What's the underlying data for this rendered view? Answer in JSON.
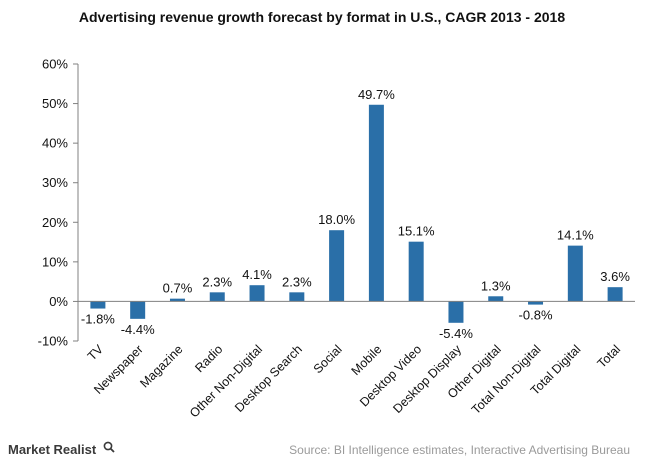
{
  "chart_data": {
    "type": "bar",
    "title": "Advertising revenue growth forecast by format in U.S., CAGR 2013 - 2018",
    "categories": [
      "TV",
      "Newspaper",
      "Magazine",
      "Radio",
      "Other Non-Digital",
      "Desktop Search",
      "Social",
      "Mobile",
      "Desktop Video",
      "Desktop Display",
      "Other Digital",
      "Total Non-Digital",
      "Total Digital",
      "Total"
    ],
    "values": [
      -1.8,
      -4.4,
      0.7,
      2.3,
      4.1,
      2.3,
      18.0,
      49.7,
      15.1,
      -5.4,
      1.3,
      -0.8,
      14.1,
      3.6
    ],
    "data_labels": [
      "-1.8%",
      "-4.4%",
      "0.7%",
      "2.3%",
      "4.1%",
      "2.3%",
      "18.0%",
      "49.7%",
      "15.1%",
      "-5.4%",
      "1.3%",
      "-0.8%",
      "14.1%",
      "3.6%"
    ],
    "ylim": [
      -10,
      60
    ],
    "yticks": [
      -10,
      0,
      10,
      20,
      30,
      40,
      50,
      60
    ],
    "ytick_labels": [
      "-10%",
      "0%",
      "10%",
      "20%",
      "30%",
      "40%",
      "50%",
      "60%"
    ],
    "xlabel": "",
    "ylabel": "",
    "bar_color": "#2a6fa8",
    "grid": false,
    "legend": "none"
  },
  "source": "Source: BI Intelligence estimates, Interactive Advertising Bureau",
  "brand": {
    "name": "Market Realist",
    "icon": "magnifier-icon"
  }
}
